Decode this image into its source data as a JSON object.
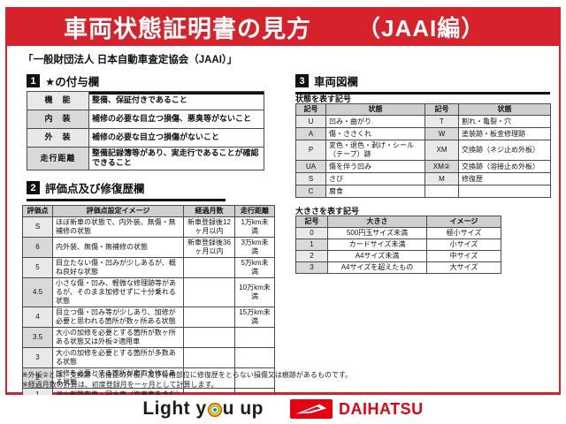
{
  "page": {
    "title": "車両状態証明書の見方",
    "title_suffix": "（JAAI編）",
    "subtitle": "「一般財団法人 日本自動車査定協会（JAAI）」"
  },
  "section1": {
    "number": "1",
    "heading": "★の付与欄",
    "rows": [
      [
        "機　能",
        "整備、保証付きであること"
      ],
      [
        "内　装",
        "補修の必要な目立つ損傷、悪臭等がないこと"
      ],
      [
        "外　装",
        "補修の必要な目立つ損傷がないこと"
      ],
      [
        "走行距離",
        "整備記録簿等があり、実走行であることが確認できること"
      ]
    ]
  },
  "section2": {
    "number": "2",
    "heading": "評価点及び修復歴欄",
    "headers": [
      "評価点",
      "評価点設定イメージ",
      "経過月数",
      "走行距離"
    ],
    "rows": [
      [
        "S",
        "ほぼ新車の状態で、内外装、無傷・無補修の状態",
        "新車登録後12ヶ月以内",
        "1万km未満"
      ],
      [
        "6",
        "内外装、無傷・無補修の状態",
        "新車登録後36ヶ月以内",
        "3万km未満"
      ],
      [
        "5",
        "目立たない傷・凹みが少しあるが、概ね良好な状態",
        "",
        "5万km未満"
      ],
      [
        "4.5",
        "小さな傷・凹み、軽微な修理跡等があるが、そのまま加修せずに十分乗れる状態",
        "",
        "10万km未満"
      ],
      [
        "4",
        "目立つ傷・凹み等が少しあり、加修が必要と思われる箇所が数ヶ所ある状態",
        "",
        "15万km未満"
      ],
      [
        "3.5",
        "大小の加修を必要とする箇所が数ヶ所ある状態又は外板②適用車",
        "",
        ""
      ],
      [
        "3",
        "大小の加修を必要とする箇所が多数ある状態",
        "",
        ""
      ],
      [
        "2",
        "加修を必要とする箇所が車両全体にある状態",
        "",
        ""
      ],
      [
        "1",
        "消火剤散布車・冠水車（塩害車を含む）",
        "",
        ""
      ],
      [
        "R",
        "修復歴車",
        "",
        ""
      ]
    ]
  },
  "section3": {
    "number": "3",
    "heading": "車両図欄",
    "state_label": "状態を表す記号",
    "state_headers": [
      "記号",
      "状態",
      "記号",
      "状態"
    ],
    "state_rows": [
      [
        "U",
        "凹み・曲がり",
        "T",
        "割れ・亀裂・穴"
      ],
      [
        "A",
        "傷・ささくれ",
        "W",
        "塗装跡・板金修理跡"
      ],
      [
        "P",
        "変色・退色・剥げ・シール（テープ）跡",
        "XM",
        "交換跡（ネジ止め外板）"
      ],
      [
        "UA",
        "傷を伴う凹み",
        "XM②",
        "交換跡（溶接止め外板）"
      ],
      [
        "S",
        "さび",
        "M",
        "修復歴"
      ],
      [
        "C",
        "腐食",
        "",
        ""
      ]
    ],
    "size_label": "大きさを表す記号",
    "size_headers": [
      "記号",
      "大きさ",
      "イメージ"
    ],
    "size_rows": [
      [
        "0",
        "500円玉サイズ未満",
        "極小サイズ"
      ],
      [
        "1",
        "カードサイズ未満",
        "小サイズ"
      ],
      [
        "2",
        "A4サイズ未満",
        "中サイズ"
      ],
      [
        "3",
        "A4サイズを超えたもの",
        "大サイズ"
      ]
    ]
  },
  "notes": {
    "line1": "※外板②とは、交換跡（溶接止め外板）及び骨格部位に修復歴をとらない損傷又は痕跡があるものです。",
    "line2": "※経過月数の計算は、初度登録月を一ヶ月として計算します。"
  },
  "footer": {
    "tagline_left": "Light y",
    "tagline_right": "u up",
    "brand": "DAIHATSU"
  },
  "colors": {
    "banner_red": "#d7212b",
    "daihatsu_red": "#e50012",
    "table_header_gray": "#cfcfcf"
  }
}
